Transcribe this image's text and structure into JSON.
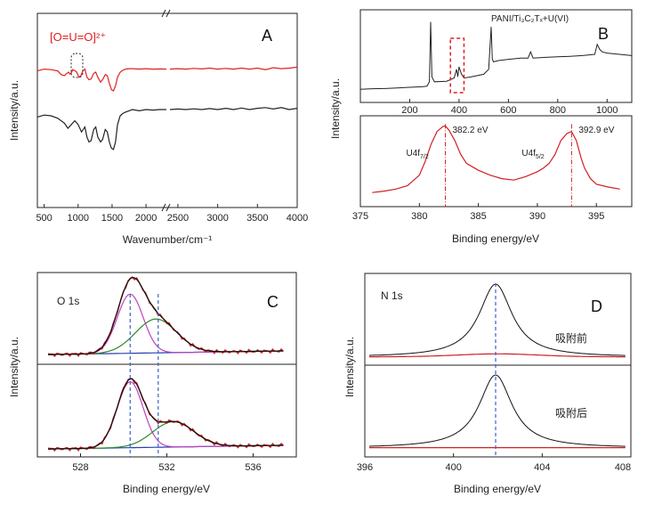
{
  "chart_data": [
    {
      "panel": "A",
      "type": "line",
      "xlabel": "Wavenumber/cm⁻¹",
      "ylabel": "Intensity/a.u.",
      "x_ticks": [
        500,
        1000,
        1500,
        2000,
        2500,
        3000,
        3500,
        4000
      ],
      "x_break": [
        2300,
        2400
      ],
      "annotation": "[O=U=O]²⁺",
      "annotation_at": 900,
      "colors": {
        "after": "#e02020",
        "before": "#222222"
      },
      "series": [
        {
          "key": "after",
          "x": [
            400,
            500,
            600,
            700,
            750,
            800,
            830,
            860,
            880,
            900,
            920,
            950,
            980,
            1010,
            1040,
            1070,
            1100,
            1130,
            1160,
            1190,
            1230,
            1260,
            1290,
            1330,
            1360,
            1400,
            1430,
            1460,
            1490,
            1520,
            1550,
            1580,
            1620,
            1660,
            1700,
            1750,
            1800,
            1900,
            2000,
            2100,
            2200,
            2300,
            2400,
            2500,
            2600,
            2700,
            2800,
            2900,
            3000,
            3100,
            3200,
            3300,
            3400,
            3500,
            3600,
            3700,
            3800,
            3900,
            4000
          ],
          "y": [
            0.55,
            0.62,
            0.6,
            0.55,
            0.4,
            0.36,
            0.44,
            0.5,
            0.42,
            0.48,
            0.6,
            0.56,
            0.5,
            0.3,
            0.35,
            0.55,
            0.62,
            0.3,
            0.2,
            0.22,
            0.45,
            0.5,
            0.3,
            0.1,
            0.2,
            0.4,
            0.36,
            0.05,
            -0.2,
            -0.25,
            -0.05,
            0.3,
            0.5,
            0.58,
            0.62,
            0.64,
            0.64,
            0.62,
            0.64,
            0.62,
            0.63,
            0.62,
            0.62,
            0.64,
            0.62,
            0.65,
            0.63,
            0.66,
            0.62,
            0.65,
            0.62,
            0.66,
            0.62,
            0.66,
            0.6,
            0.68,
            0.64,
            0.66,
            0.7
          ]
        },
        {
          "key": "before",
          "x": [
            400,
            500,
            600,
            700,
            800,
            850,
            900,
            950,
            1000,
            1050,
            1100,
            1130,
            1160,
            1190,
            1230,
            1260,
            1290,
            1330,
            1360,
            1400,
            1430,
            1460,
            1490,
            1520,
            1550,
            1580,
            1620,
            1660,
            1700,
            1750,
            1800,
            1900,
            2000,
            2100,
            2200,
            2300,
            2400,
            2500,
            2600,
            2700,
            2800,
            2900,
            3000,
            3100,
            3200,
            3300,
            3400,
            3500,
            3600,
            3700,
            3800,
            3900,
            4000
          ],
          "y": [
            -1.3,
            -1.22,
            -1.25,
            -1.35,
            -1.55,
            -1.75,
            -1.6,
            -1.45,
            -1.6,
            -1.9,
            -1.7,
            -2.1,
            -2.3,
            -2.25,
            -1.8,
            -1.7,
            -2.1,
            -2.3,
            -2.2,
            -1.8,
            -1.9,
            -2.3,
            -2.55,
            -2.6,
            -2.3,
            -1.6,
            -1.25,
            -1.15,
            -1.1,
            -1.05,
            -1.0,
            -1.05,
            -1.0,
            -1.02,
            -1.0,
            -1.0,
            -1.0,
            -0.98,
            -1.0,
            -0.97,
            -1.0,
            -0.96,
            -1.0,
            -0.95,
            -1.0,
            -0.94,
            -1.0,
            -0.95,
            -0.92,
            -0.98,
            -0.92,
            -1.0,
            -0.95
          ]
        }
      ]
    },
    {
      "panel": "B",
      "type": "line",
      "xlabel": "Binding energy/eV",
      "ylabel": "Intensity/a.u.",
      "inset_label": "PANI/Ti₃C₂Tₓ+U(VI)",
      "inset_x_ticks": [
        200,
        400,
        600,
        800,
        1000
      ],
      "x_ticks": [
        375,
        380,
        385,
        390,
        395
      ],
      "peaks": [
        {
          "x": 382.2,
          "label": "382.2 eV",
          "assign": "U4f",
          "sub": "7/2"
        },
        {
          "x": 392.9,
          "label": "392.9 eV",
          "assign": "U4f",
          "sub": "5/2"
        }
      ],
      "survey": {
        "x": [
          0,
          50,
          100,
          150,
          200,
          250,
          270,
          280,
          285,
          290,
          300,
          350,
          380,
          390,
          395,
          400,
          410,
          420,
          450,
          500,
          520,
          530,
          535,
          540,
          560,
          600,
          650,
          680,
          690,
          700,
          750,
          800,
          850,
          900,
          950,
          960,
          970,
          980,
          1000,
          1050,
          1100
        ],
        "y": [
          0.1,
          0.12,
          0.13,
          0.15,
          0.18,
          0.2,
          0.22,
          0.4,
          2.8,
          0.6,
          0.4,
          0.42,
          0.55,
          0.9,
          0.6,
          1.0,
          0.7,
          0.55,
          0.6,
          0.7,
          0.9,
          2.6,
          1.3,
          1.2,
          1.25,
          1.3,
          1.35,
          1.35,
          1.6,
          1.35,
          1.38,
          1.4,
          1.42,
          1.45,
          1.5,
          1.9,
          1.7,
          1.6,
          1.55,
          1.5,
          1.45
        ]
      },
      "series": [
        {
          "name": "",
          "x": [
            376,
            377,
            378,
            379,
            380,
            380.5,
            381,
            381.5,
            382,
            382.2,
            382.5,
            383,
            383.5,
            384,
            385,
            386,
            387,
            388,
            389,
            390,
            390.5,
            391,
            391.5,
            392,
            392.5,
            392.9,
            393.3,
            393.7,
            394,
            394.5,
            395,
            396,
            397
          ],
          "y": [
            0.1,
            0.12,
            0.15,
            0.2,
            0.35,
            0.55,
            0.8,
            0.98,
            1.05,
            1.06,
            1.0,
            0.85,
            0.65,
            0.52,
            0.42,
            0.35,
            0.3,
            0.28,
            0.33,
            0.4,
            0.45,
            0.52,
            0.65,
            0.85,
            0.95,
            0.98,
            0.85,
            0.6,
            0.45,
            0.3,
            0.22,
            0.18,
            0.15
          ]
        }
      ]
    },
    {
      "panel": "C",
      "type": "line",
      "xlabel": "Binding energy/eV",
      "ylabel": "Intensity/a.u.",
      "label": "O 1s",
      "x_ticks": [
        528,
        532,
        536
      ],
      "xlim": [
        526,
        538
      ],
      "dashed_x": [
        530.3,
        531.6
      ],
      "colors": {
        "raw": "#d02020",
        "fit": "#111111",
        "p1": "#c040c0",
        "p2": "#2a8a2a",
        "bg": "#2a3fb0"
      },
      "subplots": [
        {
          "p1": {
            "center": 530.3,
            "amp": 0.7,
            "sigma": 0.6
          },
          "p2": {
            "center": 531.5,
            "amp": 0.4,
            "sigma": 0.95
          }
        },
        {
          "p1": {
            "center": 530.3,
            "amp": 0.78,
            "sigma": 0.6
          },
          "p2": {
            "center": 532.3,
            "amp": 0.3,
            "sigma": 0.95
          }
        }
      ]
    },
    {
      "panel": "D",
      "type": "line",
      "xlabel": "Binding energy/eV",
      "ylabel": "Intensity/a.u.",
      "label": "N 1s",
      "x_ticks": [
        396,
        400,
        404,
        408
      ],
      "xlim": [
        396,
        408
      ],
      "dashed_x": 401.9,
      "series": [
        {
          "name": "吸附前",
          "center": 401.9,
          "amp": 1.0,
          "gamma": 0.9
        },
        {
          "name": "吸附后",
          "center": 401.9,
          "amp": 1.0,
          "gamma": 0.9
        }
      ],
      "colors": {
        "fit": "#111111",
        "base": "#d02020"
      }
    }
  ]
}
